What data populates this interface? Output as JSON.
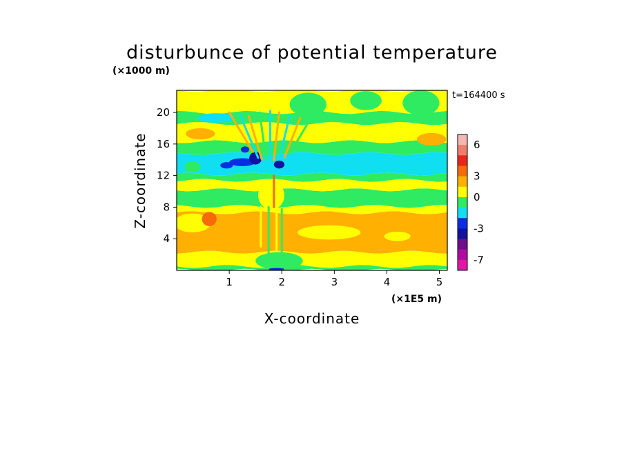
{
  "chart_data": {
    "type": "heatmap",
    "title": "disturbunce of potential temperature",
    "xlabel": "X-coordinate",
    "ylabel": "Z-coordinate",
    "xunit": "(×1E5 m)",
    "yunit": "(×1000 m)",
    "time_label": "t=164400 s",
    "xlim": [
      0,
      5.15
    ],
    "ylim": [
      0,
      22.8
    ],
    "x_ticks": [
      1,
      2,
      3,
      4,
      5
    ],
    "y_ticks": [
      4,
      8,
      12,
      16,
      20
    ],
    "grid": false,
    "legend": "colorbar-right",
    "colorbar": {
      "ticks": [
        "6",
        "3",
        "0",
        "-3",
        "-7"
      ],
      "levels": [
        {
          "color": "#F5B7B1"
        },
        {
          "color": "#F07E6E"
        },
        {
          "color": "#E8271A"
        },
        {
          "color": "#F56A0A"
        },
        {
          "color": "#FFB000"
        },
        {
          "color": "#FFFF00"
        },
        {
          "color": "#2EEB62"
        },
        {
          "color": "#10DFF2"
        },
        {
          "color": "#0A2CE3"
        },
        {
          "color": "#1212A0"
        },
        {
          "color": "#6E0E8E"
        },
        {
          "color": "#B00DA0"
        },
        {
          "color": "#E515A8"
        }
      ]
    },
    "bands": [
      {
        "z": [
          0.0,
          0.5
        ],
        "color": "#2EEB62"
      },
      {
        "z": [
          0.5,
          2.3
        ],
        "color": "#FFFF00"
      },
      {
        "z": [
          2.3,
          7.3
        ],
        "color": "#FFB000"
      },
      {
        "z": [
          7.3,
          8.1
        ],
        "color": "#FFFF00"
      },
      {
        "z": [
          8.1,
          10.2
        ],
        "color": "#2EEB62"
      },
      {
        "z": [
          10.2,
          11.4
        ],
        "color": "#FFFF00"
      },
      {
        "z": [
          11.4,
          12.2
        ],
        "color": "#2EEB62"
      },
      {
        "z": [
          12.2,
          14.8
        ],
        "color": "#10DFF2"
      },
      {
        "z": [
          14.8,
          16.3
        ],
        "color": "#2EEB62"
      },
      {
        "z": [
          16.3,
          18.6
        ],
        "color": "#FFFF00"
      },
      {
        "z": [
          18.6,
          20.0
        ],
        "color": "#2EEB62"
      },
      {
        "z": [
          20.0,
          22.8
        ],
        "color": "#FFFF00"
      }
    ],
    "patches": [
      {
        "x": 0.3,
        "z": 6.0,
        "rx": 0.35,
        "rz": 1.2,
        "color": "#FFFF00"
      },
      {
        "x": 0.62,
        "z": 6.5,
        "rx": 0.14,
        "rz": 0.9,
        "color": "#F56A0A"
      },
      {
        "x": 2.9,
        "z": 4.8,
        "rx": 0.6,
        "rz": 0.9,
        "color": "#FFFF00"
      },
      {
        "x": 4.2,
        "z": 4.3,
        "rx": 0.25,
        "rz": 0.6,
        "color": "#FFFF00"
      },
      {
        "x": 2.5,
        "z": 21.0,
        "rx": 0.35,
        "rz": 1.5,
        "color": "#2EEB62"
      },
      {
        "x": 4.65,
        "z": 21.2,
        "rx": 0.35,
        "rz": 1.6,
        "color": "#2EEB62"
      },
      {
        "x": 3.6,
        "z": 21.5,
        "rx": 0.3,
        "rz": 1.2,
        "color": "#2EEB62"
      },
      {
        "x": 0.45,
        "z": 17.3,
        "rx": 0.28,
        "rz": 0.7,
        "color": "#FFB000"
      },
      {
        "x": 4.85,
        "z": 16.6,
        "rx": 0.28,
        "rz": 0.8,
        "color": "#FFB000"
      },
      {
        "x": 3.3,
        "z": 17.2,
        "rx": 0.5,
        "rz": 0.7,
        "color": "#FFFF00"
      },
      {
        "x": 0.75,
        "z": 19.3,
        "rx": 0.35,
        "rz": 0.6,
        "color": "#10DFF2"
      },
      {
        "x": 0.3,
        "z": 13.1,
        "rx": 0.15,
        "rz": 0.7,
        "color": "#2EEB62"
      },
      {
        "x": 1.25,
        "z": 13.7,
        "rx": 0.25,
        "rz": 0.5,
        "color": "#0A2CE3"
      },
      {
        "x": 1.5,
        "z": 14.2,
        "rx": 0.12,
        "rz": 0.8,
        "color": "#1212A0"
      },
      {
        "x": 1.95,
        "z": 13.4,
        "rx": 0.1,
        "rz": 0.5,
        "color": "#1212A0"
      },
      {
        "x": 0.95,
        "z": 13.3,
        "rx": 0.12,
        "rz": 0.4,
        "color": "#0A2CE3"
      },
      {
        "x": 1.3,
        "z": 15.3,
        "rx": 0.08,
        "rz": 0.4,
        "color": "#0A2CE3"
      },
      {
        "x": 1.8,
        "z": 9.5,
        "rx": 0.25,
        "rz": 1.8,
        "color": "#FFFF00"
      },
      {
        "x": 1.95,
        "z": 1.2,
        "rx": 0.45,
        "rz": 1.1,
        "color": "#2EEB62"
      },
      {
        "x": 1.9,
        "z": 0.15,
        "rx": 0.15,
        "rz": 0.15,
        "color": "#0A2CE3"
      },
      {
        "x": 4.3,
        "z": 1.2,
        "rx": 0.5,
        "rz": 0.35,
        "color": "#FFFF00"
      }
    ],
    "streaks": [
      {
        "x": 1.45,
        "z": 17.5,
        "dx": -0.45,
        "len": 5.0,
        "color": "#FFB000"
      },
      {
        "x": 1.55,
        "z": 17.0,
        "dx": -0.35,
        "len": 5.5,
        "color": "#10DFF2"
      },
      {
        "x": 1.62,
        "z": 16.8,
        "dx": -0.25,
        "len": 5.5,
        "color": "#FFB000"
      },
      {
        "x": 1.7,
        "z": 17.0,
        "dx": -0.12,
        "len": 6.0,
        "color": "#2EEB62"
      },
      {
        "x": 1.78,
        "z": 17.2,
        "dx": 0.0,
        "len": 6.0,
        "color": "#10DFF2"
      },
      {
        "x": 1.85,
        "z": 17.0,
        "dx": 0.1,
        "len": 6.0,
        "color": "#FFB000"
      },
      {
        "x": 1.95,
        "z": 16.8,
        "dx": 0.2,
        "len": 5.5,
        "color": "#10DFF2"
      },
      {
        "x": 2.05,
        "z": 16.8,
        "dx": 0.3,
        "len": 5.0,
        "color": "#FFB000"
      },
      {
        "x": 2.15,
        "z": 17.0,
        "dx": 0.4,
        "len": 4.5,
        "color": "#2EEB62"
      },
      {
        "x": 1.6,
        "z": 5.5,
        "dx": 0.0,
        "len": 5.0,
        "color": "#FFFF00"
      },
      {
        "x": 1.75,
        "z": 5.0,
        "dx": 0.0,
        "len": 6.0,
        "color": "#2EEB62"
      },
      {
        "x": 1.9,
        "z": 5.5,
        "dx": 0.0,
        "len": 6.0,
        "color": "#FFFF00"
      },
      {
        "x": 2.0,
        "z": 5.0,
        "dx": 0.0,
        "len": 5.5,
        "color": "#2EEB62"
      },
      {
        "x": 1.85,
        "z": 10.0,
        "dx": 0.0,
        "len": 4.0,
        "color": "#F56A0A"
      }
    ]
  }
}
